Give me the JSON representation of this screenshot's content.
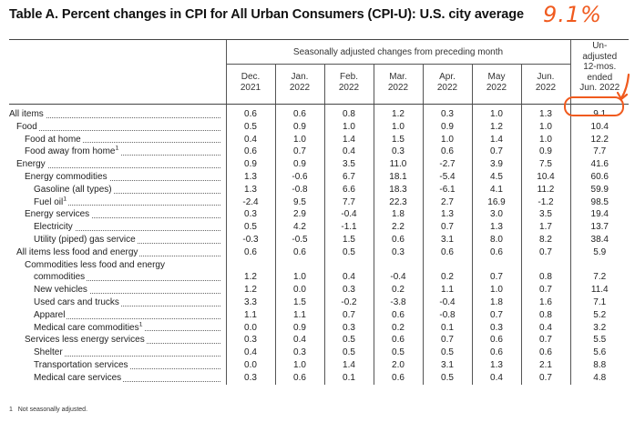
{
  "title": "Table A. Percent changes in CPI for All Urban Consumers (CPI-U): U.S. city average",
  "annotation": "9.1%",
  "header": {
    "span_label": "Seasonally adjusted changes from preceding month",
    "unadjusted_label_lines": [
      "Un-",
      "adjusted",
      "12-mos.",
      "ended",
      "Jun. 2022"
    ],
    "columns": [
      {
        "month": "Dec.",
        "year": "2021"
      },
      {
        "month": "Jan.",
        "year": "2022"
      },
      {
        "month": "Feb.",
        "year": "2022"
      },
      {
        "month": "Mar.",
        "year": "2022"
      },
      {
        "month": "Apr.",
        "year": "2022"
      },
      {
        "month": "May",
        "year": "2022"
      },
      {
        "month": "Jun.",
        "year": "2022"
      }
    ]
  },
  "rows": [
    {
      "label": "All items",
      "indent": 0,
      "values": [
        "0.6",
        "0.6",
        "0.8",
        "1.2",
        "0.3",
        "1.0",
        "1.3",
        "9.1"
      ]
    },
    {
      "label": "Food",
      "indent": 1,
      "values": [
        "0.5",
        "0.9",
        "1.0",
        "1.0",
        "0.9",
        "1.2",
        "1.0",
        "10.4"
      ]
    },
    {
      "label": "Food at home",
      "indent": 2,
      "values": [
        "0.4",
        "1.0",
        "1.4",
        "1.5",
        "1.0",
        "1.4",
        "1.0",
        "12.2"
      ]
    },
    {
      "label": "Food away from home",
      "sup": "1",
      "indent": 2,
      "values": [
        "0.6",
        "0.7",
        "0.4",
        "0.3",
        "0.6",
        "0.7",
        "0.9",
        "7.7"
      ]
    },
    {
      "label": "Energy",
      "indent": 1,
      "values": [
        "0.9",
        "0.9",
        "3.5",
        "11.0",
        "-2.7",
        "3.9",
        "7.5",
        "41.6"
      ]
    },
    {
      "label": "Energy commodities",
      "indent": 2,
      "values": [
        "1.3",
        "-0.6",
        "6.7",
        "18.1",
        "-5.4",
        "4.5",
        "10.4",
        "60.6"
      ]
    },
    {
      "label": "Gasoline (all types)",
      "indent": 3,
      "values": [
        "1.3",
        "-0.8",
        "6.6",
        "18.3",
        "-6.1",
        "4.1",
        "11.2",
        "59.9"
      ]
    },
    {
      "label": "Fuel oil",
      "sup": "1",
      "indent": 3,
      "values": [
        "-2.4",
        "9.5",
        "7.7",
        "22.3",
        "2.7",
        "16.9",
        "-1.2",
        "98.5"
      ]
    },
    {
      "label": "Energy services",
      "indent": 2,
      "values": [
        "0.3",
        "2.9",
        "-0.4",
        "1.8",
        "1.3",
        "3.0",
        "3.5",
        "19.4"
      ]
    },
    {
      "label": "Electricity",
      "indent": 3,
      "values": [
        "0.5",
        "4.2",
        "-1.1",
        "2.2",
        "0.7",
        "1.3",
        "1.7",
        "13.7"
      ]
    },
    {
      "label": "Utility (piped) gas service",
      "indent": 3,
      "values": [
        "-0.3",
        "-0.5",
        "1.5",
        "0.6",
        "3.1",
        "8.0",
        "8.2",
        "38.4"
      ]
    },
    {
      "label": "All items less food and energy",
      "indent": 1,
      "values": [
        "0.6",
        "0.6",
        "0.5",
        "0.3",
        "0.6",
        "0.6",
        "0.7",
        "5.9"
      ]
    },
    {
      "label": "Commodities less food and energy",
      "label2": "commodities",
      "indent": 2,
      "values": [
        "1.2",
        "1.0",
        "0.4",
        "-0.4",
        "0.2",
        "0.7",
        "0.8",
        "7.2"
      ]
    },
    {
      "label": "New vehicles",
      "indent": 3,
      "values": [
        "1.2",
        "0.0",
        "0.3",
        "0.2",
        "1.1",
        "1.0",
        "0.7",
        "11.4"
      ]
    },
    {
      "label": "Used cars and trucks",
      "indent": 3,
      "values": [
        "3.3",
        "1.5",
        "-0.2",
        "-3.8",
        "-0.4",
        "1.8",
        "1.6",
        "7.1"
      ]
    },
    {
      "label": "Apparel",
      "indent": 3,
      "values": [
        "1.1",
        "1.1",
        "0.7",
        "0.6",
        "-0.8",
        "0.7",
        "0.8",
        "5.2"
      ]
    },
    {
      "label": "Medical care commodities",
      "sup": "1",
      "indent": 3,
      "values": [
        "0.0",
        "0.9",
        "0.3",
        "0.2",
        "0.1",
        "0.3",
        "0.4",
        "3.2"
      ]
    },
    {
      "label": "Services less energy services",
      "indent": 2,
      "values": [
        "0.3",
        "0.4",
        "0.5",
        "0.6",
        "0.7",
        "0.6",
        "0.7",
        "5.5"
      ]
    },
    {
      "label": "Shelter",
      "indent": 3,
      "values": [
        "0.4",
        "0.3",
        "0.5",
        "0.5",
        "0.5",
        "0.6",
        "0.6",
        "5.6"
      ]
    },
    {
      "label": "Transportation services",
      "indent": 3,
      "values": [
        "0.0",
        "1.0",
        "1.4",
        "2.0",
        "3.1",
        "1.3",
        "2.1",
        "8.8"
      ]
    },
    {
      "label": "Medical care services",
      "indent": 3,
      "values": [
        "0.3",
        "0.6",
        "0.1",
        "0.6",
        "0.5",
        "0.4",
        "0.7",
        "4.8"
      ]
    }
  ],
  "footnote": {
    "marker": "1",
    "text": "Not seasonally adjusted."
  },
  "colors": {
    "annotation": "#f05a1e",
    "rule": "#444444"
  }
}
